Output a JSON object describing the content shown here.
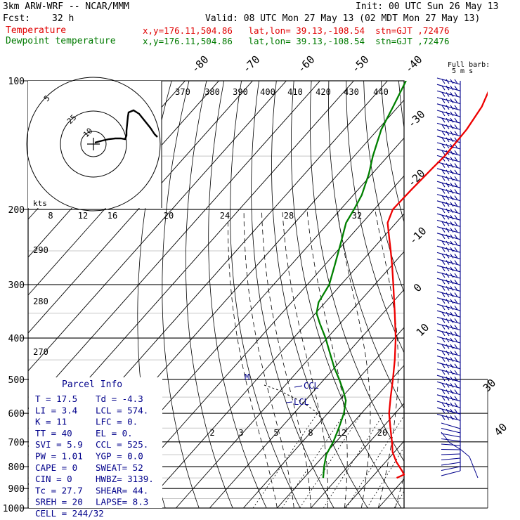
{
  "header": {
    "model": "3km ARW-WRF -- NCAR/MMM",
    "init": "Init: 00 UTC Sun 26 May 13",
    "fcst_label": "Fcst:",
    "fcst_value": "32 h",
    "valid": "Valid: 08 UTC Mon 27 May 13 (02 MDT Mon 27 May 13)",
    "temp_label": "Temperature",
    "temp_info": "x,y=176.11,504.86   lat,lon= 39.13,-108.54  stn=GJT ,72476",
    "dew_label": "Dewpoint temperature",
    "dew_info": "x,y=176.11,504.86   lat,lon= 39.13,-108.54  stn=GJT ,72476"
  },
  "colors": {
    "temperature": "#ee0000",
    "dewpoint": "#008000",
    "info_text": "#00008b",
    "barb": "#00008b",
    "parcel": "#000000"
  },
  "chart_data": {
    "type": "skew-t",
    "pressure_ticks": [
      "100",
      "200",
      "300",
      "400",
      "500",
      "600",
      "700",
      "800",
      "900",
      "1000"
    ],
    "isotherm_labels": [
      "-80",
      "-70",
      "-60",
      "-50",
      "-40",
      "-30",
      "-20",
      "-10",
      "0",
      "10",
      "30",
      "40"
    ],
    "theta_labels": [
      "370",
      "380",
      "390",
      "400",
      "410",
      "420",
      "430",
      "440",
      "290",
      "280",
      "270"
    ],
    "mixing_ratio_labels": [
      "2",
      "3",
      "5",
      "8",
      "12",
      "20"
    ],
    "hodo_speed_labels": [
      "8",
      "12",
      "16",
      "20",
      "24",
      "28",
      "32"
    ],
    "hodo_ring_labels": [
      "5",
      "25",
      "10"
    ],
    "hodo_unit": "kts",
    "barb_title": "Full barb:",
    "barb_unit": "5 m s",
    "temperature": [
      {
        "p": 850,
        "t": 17.5
      },
      {
        "p": 835,
        "t": 18.8
      },
      {
        "p": 820,
        "t": 17.4
      },
      {
        "p": 780,
        "t": 13.2
      },
      {
        "p": 740,
        "t": 9.5
      },
      {
        "p": 700,
        "t": 6.6
      },
      {
        "p": 650,
        "t": 2.5
      },
      {
        "p": 600,
        "t": -1.8
      },
      {
        "p": 550,
        "t": -5.6
      },
      {
        "p": 500,
        "t": -9.6
      },
      {
        "p": 450,
        "t": -14.2
      },
      {
        "p": 400,
        "t": -19.7
      },
      {
        "p": 350,
        "t": -26.5
      },
      {
        "p": 300,
        "t": -34.5
      },
      {
        "p": 270,
        "t": -40.0
      },
      {
        "p": 250,
        "t": -44.2
      },
      {
        "p": 230,
        "t": -48.8
      },
      {
        "p": 215,
        "t": -52.5
      },
      {
        "p": 200,
        "t": -54.5
      },
      {
        "p": 180,
        "t": -54.2
      },
      {
        "p": 160,
        "t": -53.6
      },
      {
        "p": 150,
        "t": -53.2
      },
      {
        "p": 130,
        "t": -53.7
      },
      {
        "p": 115,
        "t": -55.2
      },
      {
        "p": 100,
        "t": -58.7
      }
    ],
    "dewpoint": [
      {
        "p": 850,
        "td": -4.3
      },
      {
        "p": 800,
        "td": -7.0
      },
      {
        "p": 750,
        "td": -9.5
      },
      {
        "p": 700,
        "td": -10.8
      },
      {
        "p": 650,
        "td": -12.8
      },
      {
        "p": 600,
        "td": -15.2
      },
      {
        "p": 560,
        "td": -18.0
      },
      {
        "p": 530,
        "td": -21.5
      },
      {
        "p": 500,
        "td": -25.5
      },
      {
        "p": 470,
        "td": -30.0
      },
      {
        "p": 430,
        "td": -35.8
      },
      {
        "p": 400,
        "td": -40.5
      },
      {
        "p": 370,
        "td": -46.0
      },
      {
        "p": 350,
        "td": -49.7
      },
      {
        "p": 330,
        "td": -52.0
      },
      {
        "p": 300,
        "td": -53.5
      },
      {
        "p": 270,
        "td": -57.0
      },
      {
        "p": 240,
        "td": -61.0
      },
      {
        "p": 215,
        "td": -64.8
      },
      {
        "p": 200,
        "td": -66.0
      },
      {
        "p": 185,
        "td": -67.5
      },
      {
        "p": 165,
        "td": -71.0
      },
      {
        "p": 150,
        "td": -74.5
      },
      {
        "p": 130,
        "td": -79.0
      },
      {
        "p": 115,
        "td": -81.5
      },
      {
        "p": 100,
        "td": -84.5
      }
    ],
    "parcel_labels": [
      "M",
      "CCL",
      "LCL"
    ]
  },
  "parcel_info": {
    "title": "Parcel Info",
    "rows": [
      [
        "T   =   17.5",
        "Td  =  -4.3"
      ],
      [
        "LI  =    3.4",
        "LCL =  574."
      ],
      [
        "K   =     11",
        "LFC =    0."
      ],
      [
        "TT  =     40",
        "EL  =    0."
      ],
      [
        "SVI =    5.9",
        "CCL =  525."
      ],
      [
        "PW  =   1.01",
        "YGP =   0.0"
      ],
      [
        "CAPE =     0",
        "SWEAT=   52"
      ],
      [
        "CIN  =     0",
        "HWBZ= 3139."
      ],
      [
        "Tc   =  27.7",
        "SHEAR=  44."
      ],
      [
        "SREH =    20",
        "LAPSE=  8.3"
      ],
      [
        "CELL = 244/32",
        ""
      ]
    ]
  }
}
